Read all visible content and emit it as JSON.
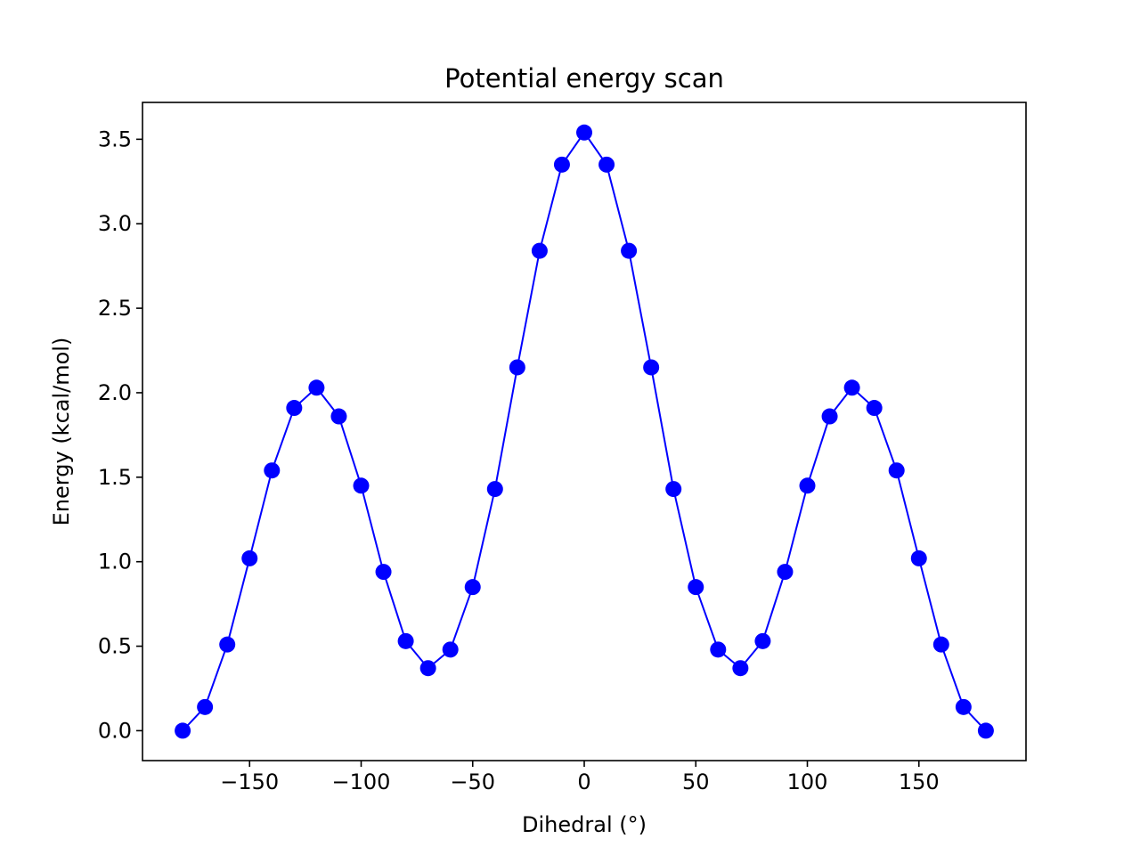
{
  "chart_data": {
    "type": "line",
    "title": "Potential energy scan",
    "xlabel": "Dihedral (°)",
    "ylabel": "Energy (kcal/mol)",
    "xlim": [
      -198,
      198
    ],
    "ylim": [
      -0.177,
      3.718
    ],
    "xticks": [
      -150,
      -100,
      -50,
      0,
      50,
      100,
      150
    ],
    "xtick_labels": [
      "−150",
      "−100",
      "−50",
      "0",
      "50",
      "100",
      "150"
    ],
    "yticks": [
      0.0,
      0.5,
      1.0,
      1.5,
      2.0,
      2.5,
      3.0,
      3.5
    ],
    "ytick_labels": [
      "0.0",
      "0.5",
      "1.0",
      "1.5",
      "2.0",
      "2.5",
      "3.0",
      "3.5"
    ],
    "grid": false,
    "legend": false,
    "series": [
      {
        "color": "#0000ff",
        "marker": "circle",
        "x": [
          -180,
          -170,
          -160,
          -150,
          -140,
          -130,
          -120,
          -110,
          -100,
          -90,
          -80,
          -70,
          -60,
          -50,
          -40,
          -30,
          -20,
          -10,
          0,
          10,
          20,
          30,
          40,
          50,
          60,
          70,
          80,
          90,
          100,
          110,
          120,
          130,
          140,
          150,
          160,
          170,
          180
        ],
        "y": [
          0.0,
          0.14,
          0.51,
          1.02,
          1.54,
          1.91,
          2.03,
          1.86,
          1.45,
          0.94,
          0.53,
          0.37,
          0.48,
          0.85,
          1.43,
          2.15,
          2.84,
          3.35,
          3.54,
          3.35,
          2.84,
          2.15,
          1.43,
          0.85,
          0.48,
          0.37,
          0.53,
          0.94,
          1.45,
          1.86,
          2.03,
          1.91,
          1.54,
          1.02,
          0.51,
          0.14,
          0.0
        ]
      }
    ]
  }
}
